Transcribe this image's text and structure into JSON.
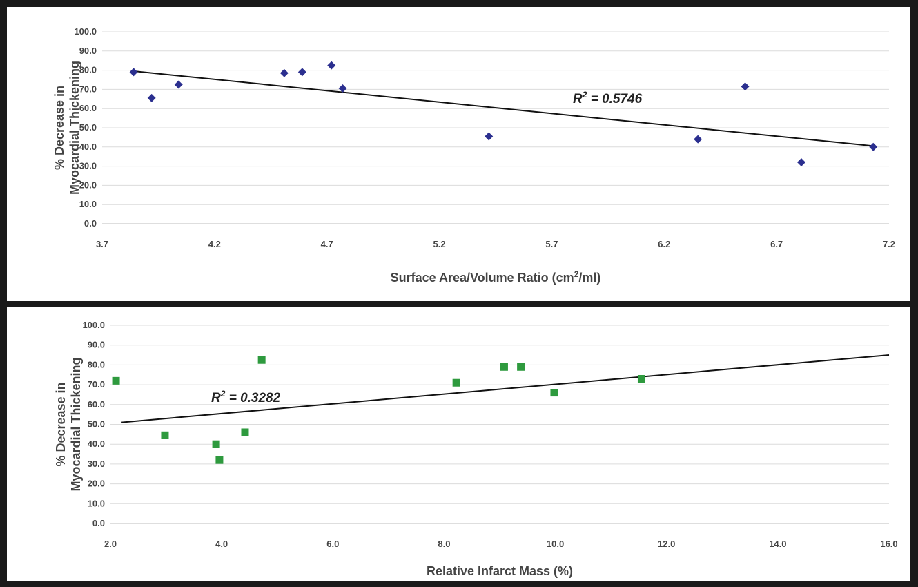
{
  "chart_data": [
    {
      "type": "scatter",
      "title": "",
      "xlabel": "Surface Area/Volume Ratio (cm²/ml)",
      "xlabel_main": "Surface Area/Volume Ratio (cm",
      "xlabel_sup": "2",
      "xlabel_tail": "/ml)",
      "ylabel_line1": "% Decrease in",
      "ylabel_line2": "Myocardial Thickening",
      "xlim": [
        3.7,
        7.2
      ],
      "ylim": [
        0,
        100
      ],
      "xticks": [
        "3.7",
        "4.2",
        "4.7",
        "5.2",
        "5.7",
        "6.2",
        "6.7",
        "7.2"
      ],
      "yticks": [
        "0.0",
        "10.0",
        "20.0",
        "30.0",
        "40.0",
        "50.0",
        "60.0",
        "70.0",
        "80.0",
        "90.0",
        "100.0"
      ],
      "marker": "diamond",
      "marker_color": "#2b2f8f",
      "points": [
        {
          "x": 3.84,
          "y": 79.0
        },
        {
          "x": 3.92,
          "y": 65.5
        },
        {
          "x": 4.04,
          "y": 72.5
        },
        {
          "x": 4.51,
          "y": 78.5
        },
        {
          "x": 4.59,
          "y": 79.0
        },
        {
          "x": 4.72,
          "y": 82.5
        },
        {
          "x": 4.77,
          "y": 70.5
        },
        {
          "x": 5.42,
          "y": 45.5
        },
        {
          "x": 6.35,
          "y": 44.0
        },
        {
          "x": 6.56,
          "y": 71.5
        },
        {
          "x": 6.81,
          "y": 32.0
        },
        {
          "x": 7.13,
          "y": 40.0
        }
      ],
      "trendline": {
        "x": [
          3.84,
          7.13
        ],
        "y": [
          79.5,
          40.5
        ]
      },
      "r2_label": "R",
      "r2_sup": "2",
      "r2_value": " = 0.5746"
    },
    {
      "type": "scatter",
      "title": "",
      "xlabel": "Relative Infarct Mass (%)",
      "ylabel_line1": "% Decrease in",
      "ylabel_line2": "Myocardial Thickening",
      "xlim": [
        2.0,
        16.0
      ],
      "ylim": [
        0,
        100
      ],
      "xticks": [
        "2.0",
        "4.0",
        "6.0",
        "8.0",
        "10.0",
        "12.0",
        "14.0",
        "16.0"
      ],
      "yticks": [
        "0.0",
        "10.0",
        "20.0",
        "30.0",
        "40.0",
        "50.0",
        "60.0",
        "70.0",
        "80.0",
        "90.0",
        "100.0"
      ],
      "marker": "square",
      "marker_color": "#2e9a3e",
      "points": [
        {
          "x": 2.1,
          "y": 72.0
        },
        {
          "x": 2.98,
          "y": 44.5
        },
        {
          "x": 3.9,
          "y": 40.0
        },
        {
          "x": 3.96,
          "y": 32.0
        },
        {
          "x": 4.42,
          "y": 46.0
        },
        {
          "x": 4.72,
          "y": 82.5
        },
        {
          "x": 8.22,
          "y": 71.0
        },
        {
          "x": 9.08,
          "y": 79.0
        },
        {
          "x": 9.38,
          "y": 79.0
        },
        {
          "x": 9.98,
          "y": 66.0
        },
        {
          "x": 11.55,
          "y": 73.0
        }
      ],
      "trendline": {
        "x": [
          2.2,
          16.0
        ],
        "y": [
          51.0,
          85.0
        ]
      },
      "r2_label": "R",
      "r2_sup": "2",
      "r2_value": " = 0.3282"
    }
  ]
}
